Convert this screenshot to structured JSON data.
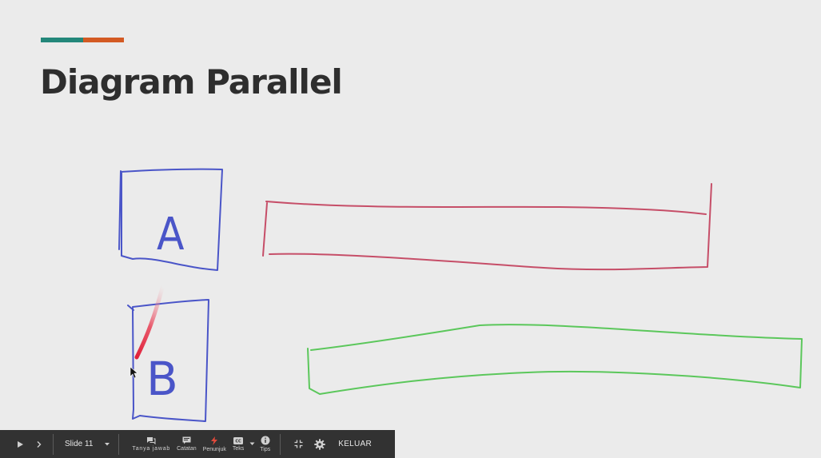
{
  "slide": {
    "title": "Diagram Parallel",
    "accent_colors": [
      "#23877a",
      "#d35a23"
    ],
    "annotations": {
      "box_a_letter": "A",
      "box_b_letter": "B",
      "pen_colors": {
        "boxes": "#4a55c8",
        "bar_top": "#c64e68",
        "bar_bottom": "#5bc75b",
        "pointer_trail": "#e0203a"
      }
    }
  },
  "toolbar": {
    "play_icon": "play-icon",
    "next_icon": "chevron-right-icon",
    "slide_label": "Slide 11",
    "qa_label": "Tanya jawab",
    "notes_label": "Catatan",
    "pointer_label": "Penunjuk",
    "captions_label": "Teks",
    "tips_label": "Tips",
    "exit_label": "KELUAR"
  }
}
